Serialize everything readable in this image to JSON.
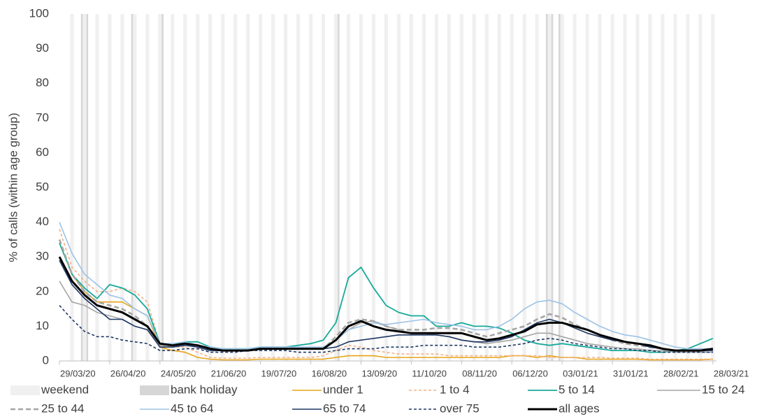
{
  "chart_data": {
    "type": "line",
    "y_label": "% of calls (within age group)",
    "x": [
      "29/03/20",
      "05/04/20",
      "12/04/20",
      "19/04/20",
      "26/04/20",
      "03/05/20",
      "10/05/20",
      "17/05/20",
      "24/05/20",
      "31/05/20",
      "07/06/20",
      "14/06/20",
      "21/06/20",
      "28/06/20",
      "05/07/20",
      "12/07/20",
      "19/07/20",
      "26/07/20",
      "02/08/20",
      "09/08/20",
      "16/08/20",
      "23/08/20",
      "30/08/20",
      "06/09/20",
      "13/09/20",
      "20/09/20",
      "27/09/20",
      "04/10/20",
      "11/10/20",
      "18/10/20",
      "25/10/20",
      "01/11/20",
      "08/11/20",
      "15/11/20",
      "22/11/20",
      "29/11/20",
      "06/12/20",
      "13/12/20",
      "20/12/20",
      "27/12/20",
      "03/01/21",
      "10/01/21",
      "17/01/21",
      "24/01/21",
      "31/01/21",
      "07/02/21",
      "14/02/21",
      "21/02/21",
      "28/02/21",
      "07/03/21",
      "14/03/21",
      "21/03/21",
      "28/03/21"
    ],
    "xlim": [
      "29/03/20",
      "30/03/21"
    ],
    "xticks": [
      "29/03/20",
      "26/04/20",
      "24/05/20",
      "21/06/20",
      "19/07/20",
      "16/08/20",
      "13/09/20",
      "11/10/20",
      "08/11/20",
      "06/12/20",
      "03/01/21",
      "31/01/21",
      "28/02/21",
      "28/03/21"
    ],
    "ylim": [
      0,
      100
    ],
    "yticks": [
      0,
      10,
      20,
      30,
      40,
      50,
      60,
      70,
      80,
      90,
      100
    ],
    "shading": [
      {
        "name": "weekend",
        "color": "#f0f0f0"
      },
      {
        "name": "bank holiday",
        "color": "#d6d6d6",
        "dates": [
          "10/04/20",
          "13/04/20",
          "08/05/20",
          "25/05/20",
          "31/08/20",
          "25/12/20",
          "28/12/20",
          "01/01/21"
        ]
      }
    ],
    "series": [
      {
        "name": "under 1",
        "color": "#e8a317",
        "dashed": false,
        "width": 1.6,
        "values": [
          34,
          25,
          20,
          17,
          17,
          17,
          15,
          13,
          4,
          3,
          2.5,
          1,
          0.5,
          0.3,
          0.3,
          0.3,
          0.5,
          0.5,
          0.5,
          0.5,
          0.5,
          0.5,
          1,
          1.5,
          1.5,
          1.5,
          1,
          1,
          1,
          1,
          1,
          1,
          1,
          1,
          1,
          1,
          1.5,
          1.5,
          1,
          1.5,
          1,
          1,
          0.5,
          0.5,
          0.5,
          0.5,
          0.5,
          0.3,
          0.3,
          0.3,
          0.3,
          0.3,
          0.5
        ]
      },
      {
        "name": "1 to 4",
        "color": "#f4b183",
        "dashed": true,
        "width": 1.6,
        "values": [
          38,
          27,
          23,
          20,
          20,
          21,
          20,
          17,
          5,
          4,
          4,
          2.5,
          1,
          0.8,
          0.8,
          0.8,
          1,
          1,
          1,
          1,
          1,
          1.5,
          3,
          4.5,
          4,
          3,
          2.5,
          2,
          2,
          2,
          2,
          1.5,
          1.5,
          1.5,
          1.5,
          1.5,
          1.5,
          1.5,
          1.5,
          1,
          1,
          1,
          1,
          1,
          0.8,
          0.8,
          0.8,
          0.5,
          0.5,
          0.5,
          0.5,
          0.5,
          0.5
        ]
      },
      {
        "name": "5 to 14",
        "color": "#17a99a",
        "dashed": false,
        "width": 1.8,
        "values": [
          34,
          25,
          21,
          18,
          22,
          21,
          19,
          15,
          5,
          4.5,
          5.5,
          5.5,
          4,
          3.5,
          3.5,
          3.5,
          4,
          4,
          4,
          4.5,
          5,
          6,
          11,
          24,
          27,
          21,
          16,
          14,
          13,
          13,
          10,
          10,
          11,
          10,
          10,
          9.5,
          8,
          6,
          5,
          4.5,
          5,
          4.5,
          4,
          3.5,
          3,
          3,
          3,
          2.5,
          2.5,
          3,
          3.5,
          5,
          6.5
        ]
      },
      {
        "name": "15 to 24",
        "color": "#a6a6a6",
        "dashed": false,
        "width": 1.6,
        "values": [
          23,
          17,
          16,
          14,
          13,
          12,
          10,
          9,
          4.5,
          4,
          4.5,
          4.5,
          3.5,
          3,
          3,
          3,
          3.5,
          3.5,
          3.5,
          3.5,
          3.5,
          3.5,
          6,
          9,
          11,
          11.5,
          10,
          9,
          8,
          8,
          7.5,
          7,
          6,
          5.5,
          5,
          5.5,
          6,
          7,
          8,
          8,
          7,
          6,
          5,
          4.5,
          4,
          3.5,
          3.5,
          3,
          3,
          2.5,
          2.5,
          2.5,
          2.5
        ]
      },
      {
        "name": "25 to 44",
        "color": "#a6a6a6",
        "dashed": true,
        "width": 2.6,
        "values": [
          35,
          25,
          20,
          17,
          16,
          15,
          13,
          10,
          4.5,
          4.5,
          5,
          4,
          3,
          3,
          3,
          3,
          3.5,
          3.5,
          3.5,
          3.5,
          3.5,
          3.5,
          7,
          11,
          12,
          11.5,
          10,
          9,
          9,
          9,
          9.5,
          9.5,
          9,
          8,
          7,
          8,
          9,
          10,
          12,
          13.5,
          12.5,
          10.5,
          9,
          7.5,
          6,
          5,
          4.5,
          4,
          3.5,
          3,
          3,
          3,
          3
        ]
      },
      {
        "name": "45 to 64",
        "color": "#9dc3e6",
        "dashed": false,
        "width": 1.6,
        "values": [
          40,
          31,
          25,
          22,
          19,
          18,
          15,
          13,
          5,
          5,
          5.5,
          4.5,
          4,
          3.5,
          3.5,
          3.5,
          4,
          4,
          4,
          4,
          4,
          4,
          6,
          9,
          10,
          11,
          10.5,
          11,
          11.5,
          12,
          11,
          10.5,
          10,
          9,
          9,
          10,
          12,
          15,
          17,
          17.5,
          16.5,
          14,
          12,
          10,
          8.5,
          7.5,
          7,
          6,
          5,
          4,
          3.5,
          3.5,
          3.5
        ]
      },
      {
        "name": "65 to 74",
        "color": "#1f3864",
        "dashed": false,
        "width": 1.6,
        "values": [
          29,
          22,
          18,
          15,
          12,
          12,
          10,
          9,
          4,
          4,
          4.5,
          4,
          3,
          3,
          3,
          3,
          3.5,
          3.5,
          3.5,
          3.5,
          3.5,
          3.5,
          4,
          5.5,
          6,
          6.5,
          7,
          7.5,
          7.5,
          7.5,
          7.5,
          7,
          6,
          5.5,
          5.5,
          6,
          7,
          9,
          11,
          12,
          11,
          9.5,
          8,
          7,
          6,
          5.5,
          5,
          4,
          3.5,
          3,
          3,
          3,
          3
        ]
      },
      {
        "name": "over 75",
        "color": "#1f3864",
        "dashed": true,
        "width": 1.6,
        "values": [
          16,
          12,
          8.5,
          7,
          7,
          6,
          5.5,
          5,
          3,
          3,
          3.5,
          3.5,
          2.5,
          2.5,
          2.5,
          3,
          3,
          3,
          3,
          2.5,
          2.5,
          2.5,
          3,
          3.5,
          3.5,
          3.5,
          4,
          4,
          4,
          4.5,
          4.5,
          4.5,
          4.5,
          4,
          4,
          4,
          4.5,
          5,
          6,
          6.5,
          6,
          5,
          4.5,
          4,
          3.5,
          3.5,
          3,
          3,
          2.5,
          2.5,
          2.5,
          2.5,
          2.5
        ]
      },
      {
        "name": "all ages",
        "color": "#000000",
        "dashed": false,
        "width": 3,
        "values": [
          30,
          23,
          19,
          16,
          15,
          14,
          12,
          10,
          5,
          4.5,
          5,
          4.5,
          3.5,
          3,
          3,
          3,
          3.5,
          3.5,
          3.5,
          3.5,
          3.5,
          3.5,
          6,
          10,
          11.5,
          10,
          9,
          8.5,
          8,
          8,
          8,
          8,
          8,
          7,
          6,
          6.5,
          7.5,
          8.5,
          10.5,
          11,
          11,
          10,
          9,
          7.5,
          6.5,
          5.5,
          5,
          4.5,
          3.5,
          3,
          3,
          3,
          3.5
        ]
      }
    ]
  }
}
